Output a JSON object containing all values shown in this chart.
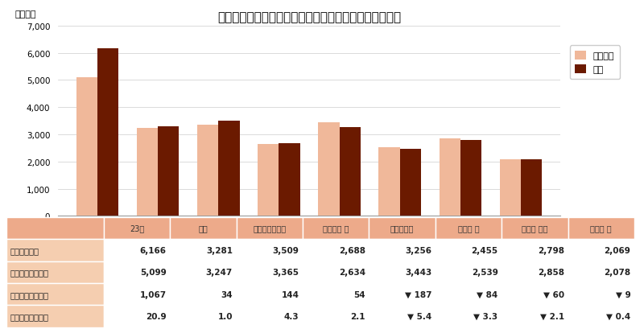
{
  "title": "＜図表１＞　首都圏８エリアの平均価格（前年同月比）",
  "ylabel": "（万円）",
  "categories": [
    "23区",
    "都下",
    "横浜市・川崎市",
    "神奈川県 他",
    "さいたま市",
    "埼玉県 他",
    "千葉県 西部",
    "千葉県 他"
  ],
  "prev_year": [
    5099,
    3247,
    3365,
    2634,
    3443,
    2539,
    2858,
    2078
  ],
  "current": [
    6166,
    3281,
    3509,
    2688,
    3256,
    2455,
    2798,
    2069
  ],
  "color_prev": "#F0B89A",
  "color_curr": "#6B1A00",
  "ylim": [
    0,
    7000
  ],
  "yticks": [
    0,
    1000,
    2000,
    3000,
    4000,
    5000,
    6000,
    7000
  ],
  "legend_prev": "前年同月",
  "legend_curr": "当月",
  "table_row_labels": [
    "当月（万円）",
    "前年同月（万円）",
    "前年差額（万円）",
    "前年同月比（％）"
  ],
  "table_data": [
    [
      "6,166",
      "3,281",
      "3,509",
      "2,688",
      "3,256",
      "2,455",
      "2,798",
      "2,069"
    ],
    [
      "5,099",
      "3,247",
      "3,365",
      "2,634",
      "3,443",
      "2,539",
      "2,858",
      "2,078"
    ],
    [
      "1,067",
      "34",
      "144",
      "54",
      "▼ 187",
      "▼ 84",
      "▼ 60",
      "▼ 9"
    ],
    [
      "20.9",
      "1.0",
      "4.3",
      "2.1",
      "▼ 5.4",
      "▼ 3.3",
      "▼ 2.1",
      "▼ 0.4"
    ]
  ],
  "header_bg": "#EDAA8A",
  "row_label_bg": "#F5CEB0",
  "cell_bg": "#FFFFFF",
  "border_color": "#FFFFFF",
  "background_color": "#FFFFFF",
  "grid_color": "#CCCCCC",
  "title_fontsize": 11,
  "bar_width": 0.35
}
